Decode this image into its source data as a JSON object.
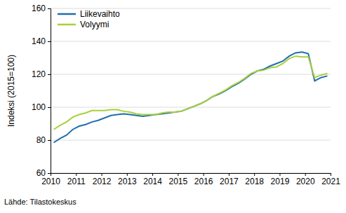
{
  "chart_data": {
    "type": "line",
    "y_label": "Indeksi (2015=100)",
    "source": "Lähde: Tilastokeskus",
    "x": [
      2010.125,
      2010.375,
      2010.625,
      2010.875,
      2011.125,
      2011.375,
      2011.625,
      2011.875,
      2012.125,
      2012.375,
      2012.625,
      2012.875,
      2013.125,
      2013.375,
      2013.625,
      2013.875,
      2014.125,
      2014.375,
      2014.625,
      2014.875,
      2015.125,
      2015.375,
      2015.625,
      2015.875,
      2016.125,
      2016.375,
      2016.625,
      2016.875,
      2017.125,
      2017.375,
      2017.625,
      2017.875,
      2018.125,
      2018.375,
      2018.625,
      2018.875,
      2019.125,
      2019.375,
      2019.625,
      2019.875,
      2020.125,
      2020.375,
      2020.625,
      2020.875
    ],
    "series": [
      {
        "name": "Liikevaihto",
        "color": "#1f6eb0",
        "values": [
          78.5,
          81,
          83,
          86.5,
          88.5,
          89.5,
          91,
          92,
          93.5,
          95,
          95.5,
          96,
          95.5,
          95,
          94.5,
          95,
          95.5,
          96,
          96.5,
          97,
          97.5,
          99,
          100.5,
          102,
          104,
          106.5,
          108,
          110,
          112.5,
          114.5,
          117,
          120,
          122,
          123,
          125,
          126.5,
          128,
          131,
          133,
          133.5,
          132.5,
          116,
          118,
          119
        ]
      },
      {
        "name": "Volyymi",
        "color": "#a9d03a",
        "values": [
          86.5,
          89,
          91,
          94,
          95.5,
          96.5,
          98,
          98,
          98,
          98.5,
          98.5,
          97.5,
          97,
          96,
          95.5,
          95.5,
          95.5,
          96.5,
          97,
          97,
          97.5,
          99,
          100.5,
          102,
          104,
          106.5,
          108.5,
          110.5,
          113,
          115,
          117.5,
          120.5,
          122,
          122.5,
          124,
          124.5,
          126.5,
          129.5,
          131,
          130.5,
          130.5,
          118,
          119.5,
          120.5
        ]
      }
    ],
    "xlim": [
      2010,
      2021
    ],
    "xticks": [
      2010,
      2011,
      2012,
      2013,
      2014,
      2015,
      2016,
      2017,
      2018,
      2019,
      2020,
      2021
    ],
    "ylim": [
      60,
      160
    ],
    "yticks": [
      60,
      80,
      100,
      120,
      140,
      160
    ],
    "grid": true,
    "legend": "upper left"
  }
}
